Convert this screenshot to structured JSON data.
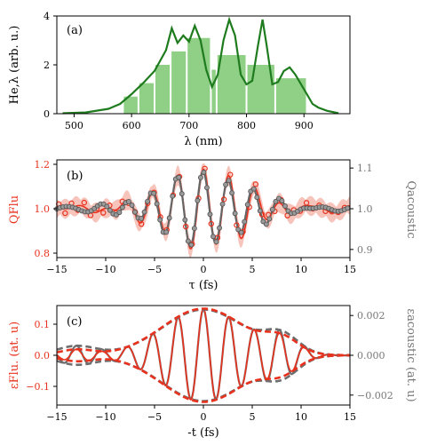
{
  "chart_data": [
    {
      "type": "bar",
      "panel_label": "(a)",
      "xlabel": "λ (nm)",
      "ylabel": "He,λ (arb. u.)",
      "xlim": [
        470,
        980
      ],
      "ylim": [
        0,
        4
      ],
      "xticks": [
        500,
        600,
        700,
        800,
        900
      ],
      "yticks": [
        0,
        2,
        4
      ],
      "colors": {
        "line": "#1e7b1e",
        "bars": "#8fcf86"
      },
      "bars": [
        {
          "x0": 585,
          "x1": 612,
          "value": 0.7
        },
        {
          "x0": 612,
          "x1": 640,
          "value": 1.25
        },
        {
          "x0": 640,
          "x1": 668,
          "value": 2.0
        },
        {
          "x0": 668,
          "x1": 696,
          "value": 2.55
        },
        {
          "x0": 696,
          "x1": 738,
          "value": 3.1
        },
        {
          "x0": 738,
          "x1": 748,
          "value": 1.8
        },
        {
          "x0": 748,
          "x1": 800,
          "value": 2.4
        },
        {
          "x0": 800,
          "x1": 850,
          "value": 2.0
        },
        {
          "x0": 850,
          "x1": 905,
          "value": 1.45
        }
      ],
      "spectrum": {
        "x": [
          480,
          520,
          560,
          580,
          600,
          620,
          640,
          660,
          670,
          680,
          690,
          700,
          710,
          720,
          730,
          740,
          750,
          760,
          770,
          780,
          790,
          800,
          810,
          820,
          828,
          835,
          845,
          855,
          865,
          875,
          885,
          895,
          905,
          915,
          925,
          940,
          960
        ],
        "y": [
          0.02,
          0.05,
          0.2,
          0.4,
          0.8,
          1.25,
          1.75,
          2.6,
          3.5,
          2.9,
          3.2,
          2.95,
          3.6,
          3.0,
          1.8,
          1.1,
          1.6,
          3.0,
          3.85,
          3.2,
          1.6,
          1.2,
          1.35,
          2.8,
          3.85,
          2.8,
          1.2,
          1.3,
          1.75,
          1.9,
          1.6,
          1.2,
          0.8,
          0.4,
          0.25,
          0.12,
          0.02
        ]
      }
    },
    {
      "type": "scatter",
      "panel_label": "(b)",
      "xlabel": "τ (fs)",
      "ylabel": "QFlu",
      "ylabel_right": "Qacoustic",
      "xlim": [
        -15,
        15
      ],
      "ylim": [
        0.78,
        1.22
      ],
      "ylim_right": [
        0.88,
        1.12
      ],
      "xticks": [
        -15,
        -10,
        -5,
        0,
        5,
        10,
        15
      ],
      "yticks": [
        "0.8",
        "1.0",
        "1.2"
      ],
      "yticks_right": [
        "0.9",
        "1.0",
        "1.1"
      ],
      "colors": {
        "flu": "#e8321e",
        "acoustic": "#666666",
        "band": "#f4b5aa"
      },
      "series": [
        {
          "name": "QFlu",
          "model": {
            "amplitude": 0.17,
            "period_fs": 2.6,
            "envelope_sigma_fs": 4.5,
            "offset": 1.0
          }
        },
        {
          "name": "Qacoustic",
          "model": {
            "amplitude": 0.09,
            "period_fs": 2.6,
            "envelope_sigma_fs": 4.5,
            "offset": 1.0
          }
        }
      ]
    },
    {
      "type": "line",
      "panel_label": "(c)",
      "xlabel": "-t (fs)",
      "ylabel": "εFlu. (at. u)",
      "ylabel_right": "εacoustic (at. u)",
      "xlim": [
        -15,
        15
      ],
      "ylim": [
        -0.16,
        0.16
      ],
      "ylim_right": [
        -0.0025,
        0.0025
      ],
      "xticks": [
        -15,
        -10,
        -5,
        0,
        5,
        10,
        15
      ],
      "yticks": [
        "0.1",
        "0.0",
        "−0.1"
      ],
      "yticks_right": [
        "0.002",
        "0.000",
        "−0.002"
      ],
      "colors": {
        "flu": "#e8321e",
        "acoustic": "#6e6e6e"
      },
      "series": [
        {
          "name": "εFlu.",
          "envelope_peak": 0.15,
          "envelope_sigma_fs": 4.2,
          "period_fs": 2.6
        },
        {
          "name": "εacoustic",
          "envelope_peak": 0.0023,
          "envelope_sigma_fs": 4.2,
          "period_fs": 2.6
        }
      ]
    }
  ]
}
